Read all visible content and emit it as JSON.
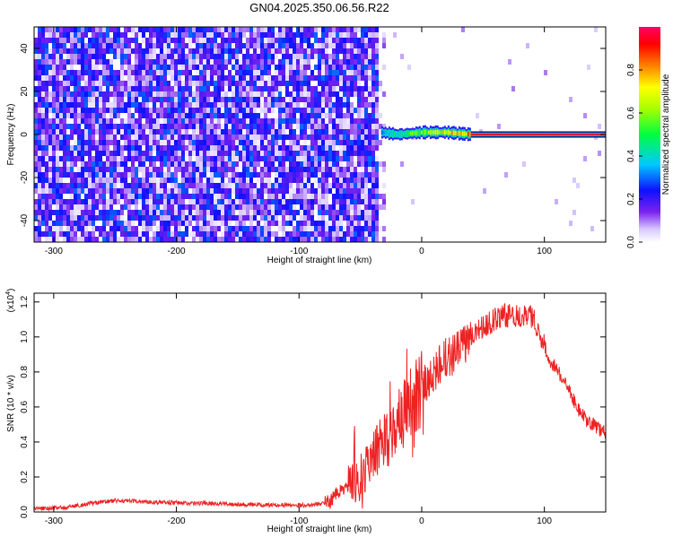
{
  "title": "GN04.2025.350.06.56.R22",
  "chart_data": [
    {
      "type": "heatmap",
      "name": "spectrogram",
      "xlabel": "Height of straight line (km)",
      "ylabel": "Frequency (Hz)",
      "xlim": [
        -316,
        150
      ],
      "ylim": [
        -50,
        50
      ],
      "xticks": [
        -300,
        -200,
        -100,
        0,
        100
      ],
      "yticks": [
        -40,
        -20,
        0,
        20,
        40
      ],
      "colorbar": {
        "label": "Normalized spectral amplitude",
        "range": [
          0,
          1
        ],
        "ticks": [
          0.0,
          0.2,
          0.4,
          0.6,
          0.8
        ]
      },
      "noise_region_x": [
        -316,
        -33
      ],
      "noise_level": 0.12,
      "signal": [
        {
          "x": -33,
          "freq": 1,
          "amp": 0.3
        },
        {
          "x": -20,
          "freq": 0,
          "amp": 0.55
        },
        {
          "x": 0,
          "freq": 1,
          "amp": 0.7
        },
        {
          "x": 20,
          "freq": 1,
          "amp": 0.8
        },
        {
          "x": 40,
          "freq": 0,
          "amp": 0.92
        },
        {
          "x": 150,
          "freq": 0,
          "amp": 0.95
        }
      ]
    },
    {
      "type": "line",
      "name": "snr",
      "xlabel": "Height of straight line (km)",
      "ylabel": "SNR (10 * v/v)",
      "scale_label": "(x10",
      "scale_exp": "4",
      "scale_close": ")",
      "xlim": [
        -316,
        150
      ],
      "ylim": [
        0,
        1.25
      ],
      "xticks": [
        -300,
        -200,
        -100,
        0,
        100
      ],
      "yticks": [
        0.0,
        0.2,
        0.4,
        0.6,
        0.8,
        1.0,
        1.2
      ],
      "color": "#ee2222",
      "series": [
        {
          "name": "SNR",
          "x": [
            -316,
            -290,
            -270,
            -250,
            -230,
            -210,
            -190,
            -170,
            -150,
            -130,
            -110,
            -95,
            -85,
            -75,
            -70,
            -60,
            -55,
            -50,
            -45,
            -40,
            -35,
            -30,
            -25,
            -20,
            -15,
            -10,
            -5,
            0,
            5,
            10,
            15,
            20,
            25,
            30,
            35,
            40,
            45,
            50,
            55,
            60,
            65,
            70,
            75,
            80,
            85,
            90,
            95,
            100,
            105,
            110,
            115,
            120,
            125,
            130,
            135,
            140,
            145,
            150
          ],
          "y": [
            0.02,
            0.025,
            0.05,
            0.065,
            0.06,
            0.055,
            0.05,
            0.05,
            0.045,
            0.04,
            0.04,
            0.04,
            0.045,
            0.06,
            0.1,
            0.15,
            0.18,
            0.2,
            0.25,
            0.32,
            0.36,
            0.4,
            0.45,
            0.52,
            0.55,
            0.62,
            0.66,
            0.72,
            0.76,
            0.78,
            0.84,
            0.88,
            0.9,
            0.92,
            0.96,
            1.02,
            1.04,
            1.06,
            1.08,
            1.1,
            1.12,
            1.12,
            1.13,
            1.12,
            1.14,
            1.12,
            1.05,
            0.95,
            0.86,
            0.82,
            0.76,
            0.7,
            0.62,
            0.56,
            0.52,
            0.5,
            0.47,
            0.45
          ]
        }
      ]
    }
  ]
}
